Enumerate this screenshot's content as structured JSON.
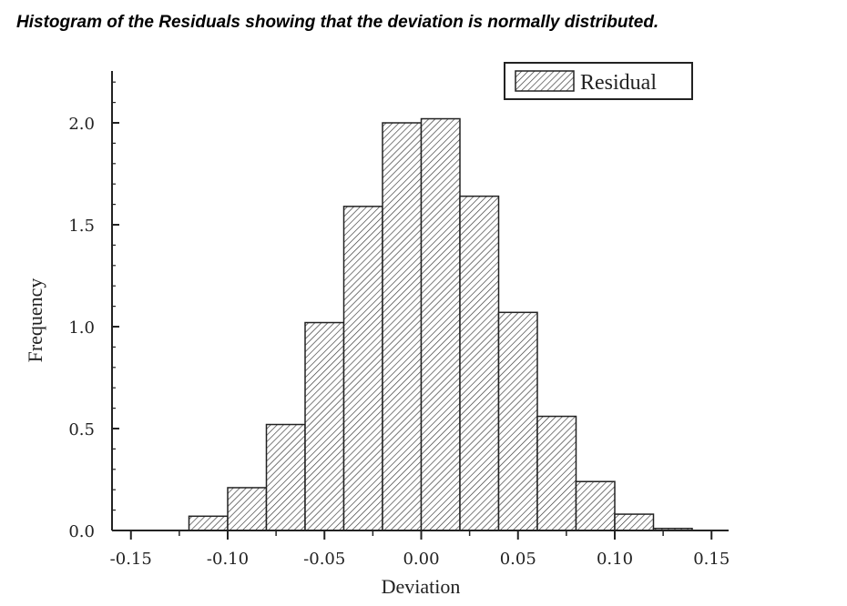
{
  "title": "Histogram of the Residuals showing that the deviation is normally distributed.",
  "chart_data": {
    "type": "bar",
    "title": "Histogram of the Residuals showing that the deviation is normally distributed.",
    "xlabel": "Deviation",
    "ylabel": "Frequency",
    "xlim": [
      -0.16,
      0.155
    ],
    "ylim": [
      0,
      2.25
    ],
    "bin_width": 0.02,
    "bin_edges": [
      -0.12,
      -0.1,
      -0.08,
      -0.06,
      -0.04,
      -0.02,
      0.0,
      0.02,
      0.04,
      0.06,
      0.08,
      0.1,
      0.12,
      0.14
    ],
    "values": [
      0.07,
      0.21,
      0.52,
      1.02,
      1.59,
      2.0,
      2.02,
      1.64,
      1.07,
      0.56,
      0.24,
      0.08,
      0.01
    ],
    "x_ticks": [
      -0.15,
      -0.1,
      -0.05,
      0.0,
      0.05,
      0.1,
      0.15
    ],
    "x_tick_labels": [
      "-0.15",
      "-0.10",
      "-0.05",
      "0.00",
      "0.05",
      "0.10",
      "0.15"
    ],
    "y_ticks": [
      0,
      0.5,
      1.0,
      1.5,
      2.0
    ],
    "y_tick_labels": [
      "0.0",
      "0.5",
      "1.0",
      "1.5",
      "2.0"
    ],
    "legend": {
      "entries": [
        "Residual"
      ],
      "placement": "top-right"
    },
    "grid": false,
    "fill_pattern": "diagonal-hatch",
    "color": "#333333"
  }
}
